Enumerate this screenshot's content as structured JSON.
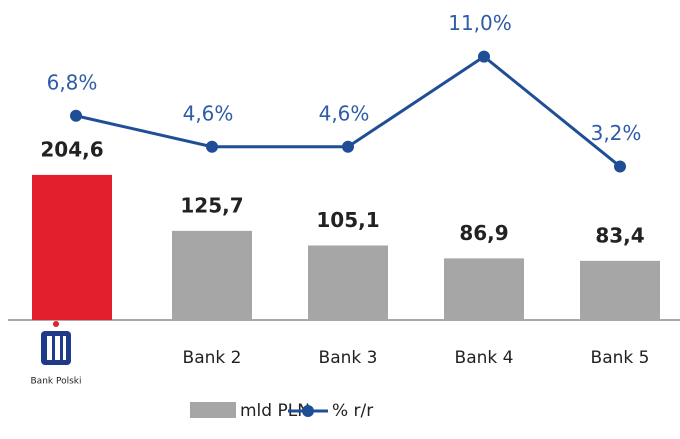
{
  "chart_data": {
    "type": "bar_line",
    "categories": [
      "Bank Polski",
      "Bank 2",
      "Bank 3",
      "Bank 4",
      "Bank 5"
    ],
    "series": [
      {
        "name": "mld PLN",
        "type": "bar",
        "color": "#a6a6a6",
        "colors": [
          "#e31e2d",
          "#a6a6a6",
          "#a6a6a6",
          "#a6a6a6",
          "#a6a6a6"
        ],
        "values": [
          204.6,
          125.7,
          105.1,
          86.9,
          83.4
        ],
        "value_labels": [
          "204,6",
          "125,7",
          "105,1",
          "86,9",
          "83,4"
        ]
      },
      {
        "name": "% r/r",
        "type": "line",
        "axis": "y2",
        "color": "#1f4e96",
        "label_color": "#2e5ca8",
        "values": [
          6.8,
          4.6,
          4.6,
          11.0,
          3.2
        ],
        "value_labels": [
          "6,8%",
          "4,6%",
          "4,6%",
          "11,0%",
          "3,2%"
        ]
      }
    ],
    "ylim": [
      0,
      423
    ],
    "y2lim": [
      -7.7,
      13.6
    ]
  }
}
